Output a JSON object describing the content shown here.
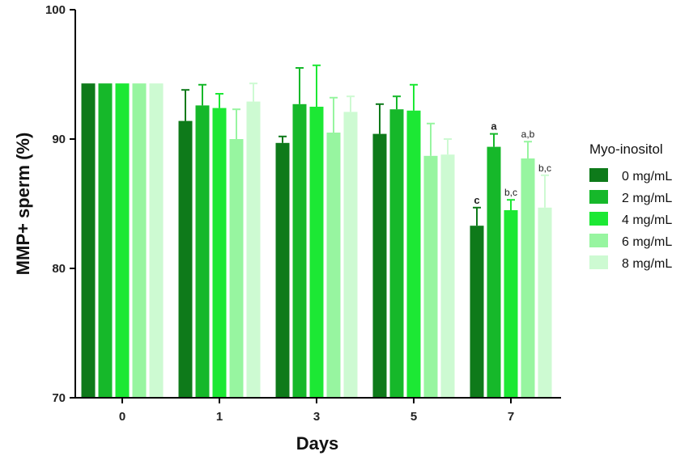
{
  "chart_data": {
    "type": "bar",
    "xlabel": "Days",
    "ylabel": "MMP+ sperm (%)",
    "ylim": [
      70,
      100
    ],
    "yticks": [
      70,
      80,
      90,
      100
    ],
    "categories": [
      "0",
      "1",
      "3",
      "5",
      "7"
    ],
    "legend_title": "Myo-inositol",
    "legend_position": "right",
    "grid": false,
    "series": [
      {
        "name": "0 mg/mL",
        "color": "#0e7a1a",
        "values": [
          94.3,
          91.4,
          89.7,
          90.4,
          83.3
        ],
        "errors": [
          0,
          2.4,
          0.5,
          2.3,
          1.4
        ]
      },
      {
        "name": "2 mg/mL",
        "color": "#16b82a",
        "values": [
          94.3,
          92.6,
          92.7,
          92.3,
          89.4
        ],
        "errors": [
          0,
          1.6,
          2.8,
          1.0,
          1.0
        ]
      },
      {
        "name": "4 mg/mL",
        "color": "#1ce834",
        "values": [
          94.3,
          92.4,
          92.5,
          92.2,
          84.5
        ],
        "errors": [
          0,
          1.1,
          3.2,
          2.0,
          0.8
        ]
      },
      {
        "name": "6 mg/mL",
        "color": "#97f5a0",
        "values": [
          94.3,
          90.0,
          90.5,
          88.7,
          88.5
        ],
        "errors": [
          0,
          2.3,
          2.7,
          2.5,
          1.3
        ]
      },
      {
        "name": "8 mg/mL",
        "color": "#cdfad2",
        "values": [
          94.3,
          92.9,
          92.1,
          88.8,
          84.7
        ],
        "errors": [
          0,
          1.4,
          1.2,
          1.2,
          2.5
        ]
      }
    ],
    "annotations": [
      {
        "category": "7",
        "series": "0 mg/mL",
        "text": "c",
        "bold": true
      },
      {
        "category": "7",
        "series": "2 mg/mL",
        "text": "a",
        "bold": true
      },
      {
        "category": "7",
        "series": "4 mg/mL",
        "text": "b,c",
        "bold": false
      },
      {
        "category": "7",
        "series": "6 mg/mL",
        "text": "a,b",
        "bold": false
      },
      {
        "category": "7",
        "series": "8 mg/mL",
        "text": "b,c",
        "bold": false
      }
    ]
  }
}
